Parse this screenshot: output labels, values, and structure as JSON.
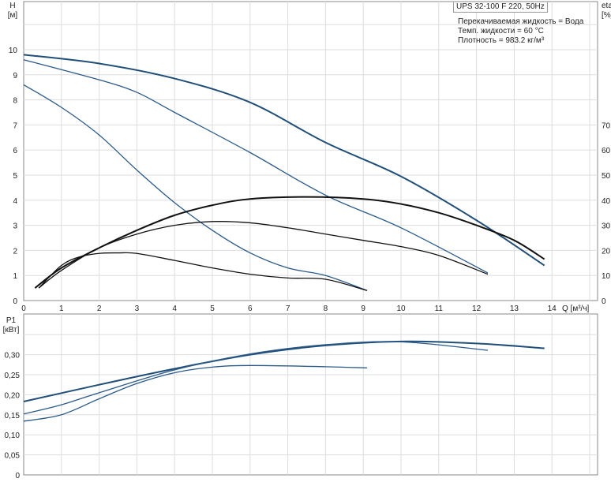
{
  "chart_data": [
    {
      "type": "line",
      "title": "UPS 32-100 F 220, 50Hz",
      "info": [
        "Перекачиваемая жидкость = Вода",
        "Темп. жидкости = 60 °C",
        "Плотность = 983.2 кг/м³"
      ],
      "xlabel": "Q [м³/ч]",
      "ylabel": "H",
      "yunit": "[м]",
      "y2label": "eta",
      "y2unit": "[%]",
      "xlim": [
        0,
        15
      ],
      "ylim": [
        0,
        11
      ],
      "y2lim": [
        0,
        110
      ],
      "grid": true,
      "xticks": [
        0,
        1,
        2,
        3,
        4,
        5,
        6,
        7,
        8,
        9,
        10,
        11,
        12,
        13,
        14
      ],
      "yticks": [
        0,
        1,
        2,
        3,
        4,
        5,
        6,
        7,
        8,
        9,
        10
      ],
      "y2ticks": [
        0,
        10,
        20,
        30,
        40,
        50,
        60,
        70
      ],
      "series": [
        {
          "axis": "H",
          "color": "#1f4e79",
          "points": [
            [
              0,
              9.8
            ],
            [
              2,
              9.45
            ],
            [
              4,
              8.85
            ],
            [
              6,
              7.9
            ],
            [
              8,
              6.3
            ],
            [
              10,
              4.95
            ],
            [
              12,
              3.2
            ],
            [
              13.8,
              1.4
            ]
          ]
        },
        {
          "axis": "H",
          "color": "#2a5a8a",
          "points": [
            [
              0,
              9.6
            ],
            [
              2,
              8.8
            ],
            [
              3,
              8.3
            ],
            [
              4,
              7.5
            ],
            [
              6,
              5.9
            ],
            [
              8,
              4.2
            ],
            [
              10,
              2.9
            ],
            [
              12.3,
              1.1
            ]
          ]
        },
        {
          "axis": "H",
          "color": "#2a5a8a",
          "points": [
            [
              0,
              8.6
            ],
            [
              1,
              7.7
            ],
            [
              2,
              6.6
            ],
            [
              3,
              5.2
            ],
            [
              4,
              3.9
            ],
            [
              5,
              2.8
            ],
            [
              6,
              1.9
            ],
            [
              7,
              1.3
            ],
            [
              8,
              1.0
            ],
            [
              9.1,
              0.4
            ]
          ]
        },
        {
          "axis": "eta",
          "color": "#111",
          "points": [
            [
              0.3,
              5
            ],
            [
              1,
              13
            ],
            [
              2,
              21
            ],
            [
              3,
              28
            ],
            [
              4,
              34
            ],
            [
              5,
              38
            ],
            [
              6,
              40.5
            ],
            [
              7.5,
              41.3
            ],
            [
              9,
              40.5
            ],
            [
              10,
              38.5
            ],
            [
              11,
              35
            ],
            [
              12,
              30
            ],
            [
              13,
              24
            ],
            [
              13.8,
              16.5
            ]
          ]
        },
        {
          "axis": "eta",
          "color": "#111",
          "points": [
            [
              0.4,
              5
            ],
            [
              1,
              12
            ],
            [
              2,
              21
            ],
            [
              3,
              26.5
            ],
            [
              4,
              30
            ],
            [
              5,
              31.5
            ],
            [
              6,
              31
            ],
            [
              7,
              29
            ],
            [
              8,
              26.5
            ],
            [
              9,
              24
            ],
            [
              10,
              21.5
            ],
            [
              11,
              18
            ],
            [
              12.3,
              10.5
            ]
          ]
        },
        {
          "axis": "eta",
          "color": "#111",
          "points": [
            [
              0.4,
              5
            ],
            [
              1,
              14
            ],
            [
              1.5,
              17.5
            ],
            [
              2,
              18.8
            ],
            [
              2.5,
              19
            ],
            [
              3,
              18.8
            ],
            [
              4,
              16
            ],
            [
              5,
              13
            ],
            [
              6,
              10.5
            ],
            [
              7,
              9
            ],
            [
              8,
              8.5
            ],
            [
              9.1,
              4
            ]
          ]
        }
      ]
    },
    {
      "type": "line",
      "ylabel": "P1",
      "yunit": "[кВт]",
      "xlim": [
        0,
        15
      ],
      "ylim": [
        0,
        0.41
      ],
      "grid": true,
      "yticks": [
        "0",
        "0,05",
        "0,10",
        "0,15",
        "0,20",
        "0,25",
        "0,30"
      ],
      "series": [
        {
          "color": "#1f4e79",
          "points": [
            [
              0,
              0.183
            ],
            [
              2,
              0.225
            ],
            [
              4,
              0.265
            ],
            [
              6,
              0.3
            ],
            [
              8,
              0.323
            ],
            [
              10,
              0.333
            ],
            [
              12,
              0.328
            ],
            [
              13.8,
              0.316
            ]
          ]
        },
        {
          "color": "#2a5a8a",
          "points": [
            [
              0,
              0.152
            ],
            [
              1,
              0.175
            ],
            [
              2,
              0.205
            ],
            [
              4,
              0.262
            ],
            [
              6,
              0.302
            ],
            [
              8,
              0.325
            ],
            [
              10,
              0.332
            ],
            [
              12.3,
              0.311
            ]
          ]
        },
        {
          "color": "#2a5a8a",
          "points": [
            [
              0,
              0.134
            ],
            [
              1,
              0.15
            ],
            [
              2,
              0.19
            ],
            [
              3,
              0.228
            ],
            [
              4,
              0.255
            ],
            [
              5,
              0.269
            ],
            [
              6,
              0.273
            ],
            [
              8,
              0.27
            ],
            [
              9.1,
              0.267
            ]
          ]
        }
      ]
    }
  ]
}
